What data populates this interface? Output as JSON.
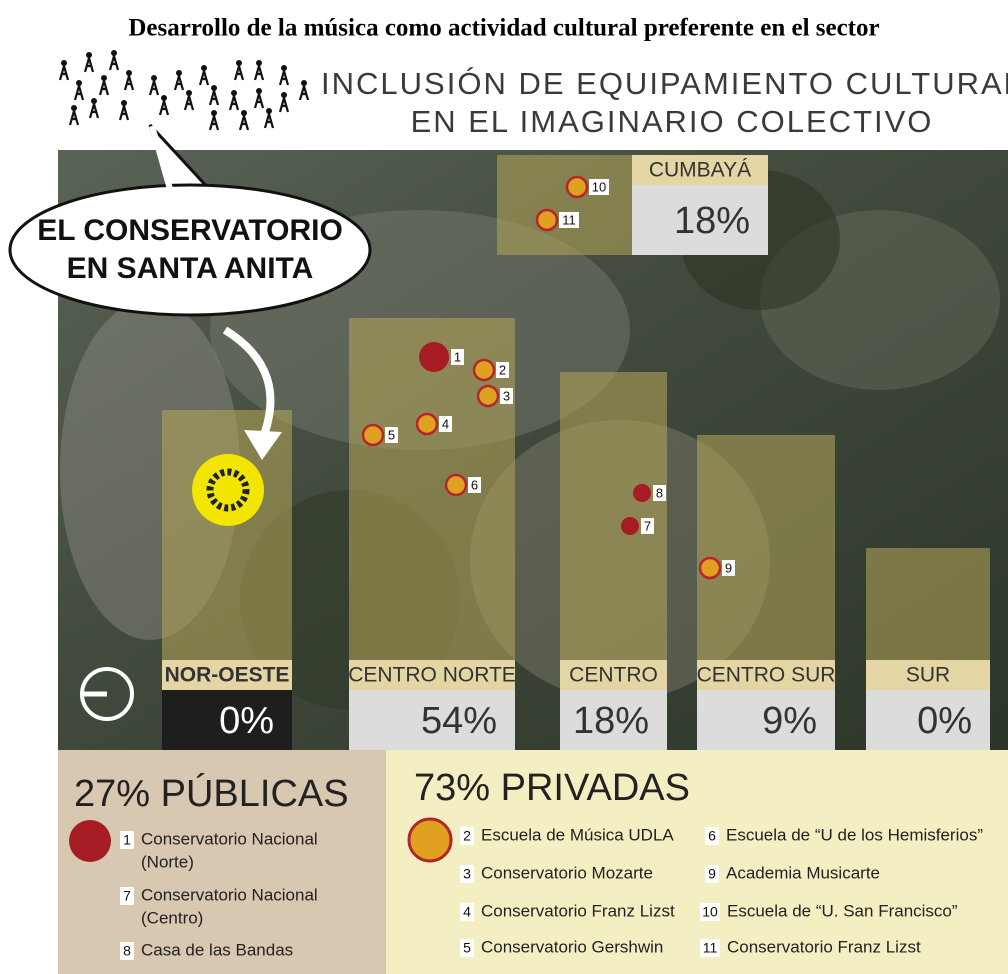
{
  "title": "Desarrollo de la música como actividad cultural preferente en el sector",
  "header": {
    "line1": "INCLUSIÓN DE EQUIPAMIENTO CULTURAL",
    "line2": "EN EL IMAGINARIO COLECTIVO"
  },
  "callout": {
    "line1": "EL CONSERVATORIO",
    "line2": "EN SANTA ANITA"
  },
  "zones": [
    {
      "name": "CUMBAYÁ",
      "share": "18%"
    },
    {
      "name": "NOR-OESTE",
      "share": "0%"
    },
    {
      "name": "CENTRO NORTE",
      "share": "54%"
    },
    {
      "name": "CENTRO",
      "share": "18%"
    },
    {
      "name": "CENTRO SUR",
      "share": "9%"
    },
    {
      "name": "SUR",
      "share": "0%"
    }
  ],
  "markers": [
    1,
    2,
    3,
    4,
    5,
    6,
    7,
    8,
    9,
    10,
    11
  ],
  "legend": {
    "public": {
      "heading": "27% PÚBLICAS",
      "items": [
        {
          "number": 1,
          "name": [
            "Conservatorio Nacional",
            "(Norte)"
          ]
        },
        {
          "number": 7,
          "name": [
            "Conservatorio Nacional",
            "(Centro)"
          ]
        },
        {
          "number": 8,
          "name": [
            "Casa de las Bandas"
          ]
        }
      ]
    },
    "private": {
      "heading": "73% PRIVADAS",
      "items": [
        {
          "number": 2,
          "name": [
            "Escuela de Música UDLA"
          ]
        },
        {
          "number": 3,
          "name": [
            "Conservatorio Mozarte"
          ]
        },
        {
          "number": 4,
          "name": [
            "Conservatorio Franz Lizst"
          ]
        },
        {
          "number": 5,
          "name": [
            "Conservatorio Gershwin"
          ]
        },
        {
          "number": 6,
          "name": [
            "Escuela de “U de los Hemisferios”"
          ]
        },
        {
          "number": 9,
          "name": [
            "Academia Musicarte"
          ]
        },
        {
          "number": 10,
          "name": [
            "Escuela de “U. San Francisco”"
          ]
        },
        {
          "number": 11,
          "name": [
            "Conservatorio Franz Lizst"
          ]
        }
      ]
    }
  }
}
